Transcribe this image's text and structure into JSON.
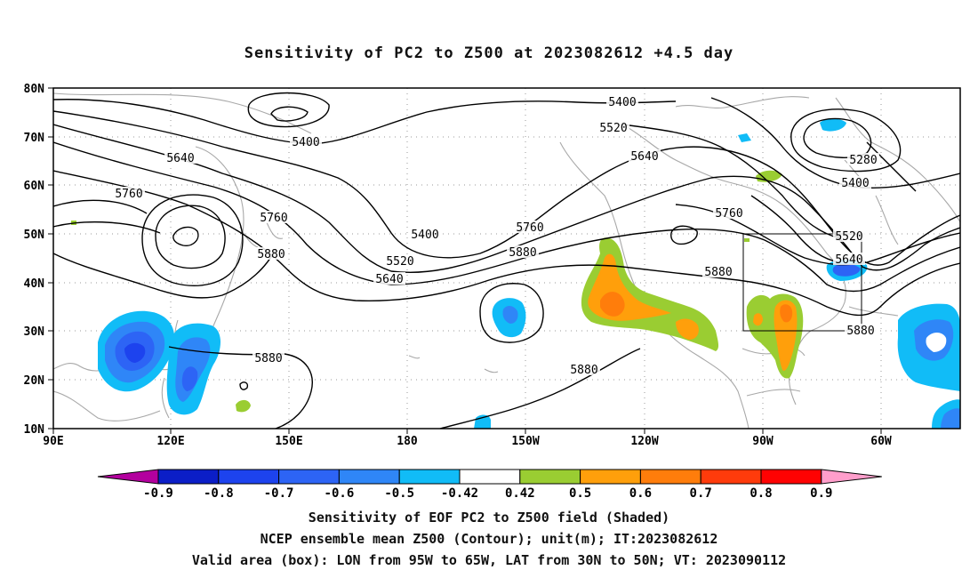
{
  "title": "Sensitivity of PC2 to Z500 at 2023082612 +4.5 day",
  "lat_labels": [
    "80N",
    "70N",
    "60N",
    "50N",
    "40N",
    "30N",
    "20N",
    "10N"
  ],
  "lon_labels": [
    "90E",
    "120E",
    "150E",
    "180",
    "150W",
    "120W",
    "90W",
    "60W"
  ],
  "contour_labels": [
    {
      "text": "5400"
    },
    {
      "text": "5520"
    },
    {
      "text": "5640"
    },
    {
      "text": "5280"
    },
    {
      "text": "5400"
    },
    {
      "text": "5400"
    },
    {
      "text": "5640"
    },
    {
      "text": "5760"
    },
    {
      "text": "5760"
    },
    {
      "text": "5880"
    },
    {
      "text": "5400"
    },
    {
      "text": "5520"
    },
    {
      "text": "5640"
    },
    {
      "text": "5760"
    },
    {
      "text": "5880"
    },
    {
      "text": "5760"
    },
    {
      "text": "5520"
    },
    {
      "text": "5640"
    },
    {
      "text": "5880"
    },
    {
      "text": "5880"
    },
    {
      "text": "5880"
    },
    {
      "text": "5880"
    }
  ],
  "colorbar": {
    "labels": [
      "-0.9",
      "-0.8",
      "-0.7",
      "-0.6",
      "-0.5",
      "-0.42",
      "0.42",
      "0.5",
      "0.6",
      "0.7",
      "0.8",
      "0.9"
    ],
    "colors": [
      "#b3009e",
      "#0b1ec7",
      "#1d43ee",
      "#2d64f5",
      "#2f86f7",
      "#11bcf7",
      "#ffffff",
      "#9acd32",
      "#ff9f0b",
      "#ff7d0b",
      "#ff3b0b",
      "#ff0202",
      "#ff9ecb"
    ]
  },
  "valid_box": {
    "lon_from": "95W",
    "lon_to": "65W",
    "lat_from": "30N",
    "lat_to": "50N"
  },
  "footer": {
    "line1": "Sensitivity of EOF PC2 to Z500 field (Shaded)",
    "line2": "NCEP ensemble mean Z500 (Contour); unit(m); IT:2023082612",
    "line3": "Valid area (box): LON from 95W to 65W, LAT from 30N to 50N; VT: 2023090112"
  }
}
